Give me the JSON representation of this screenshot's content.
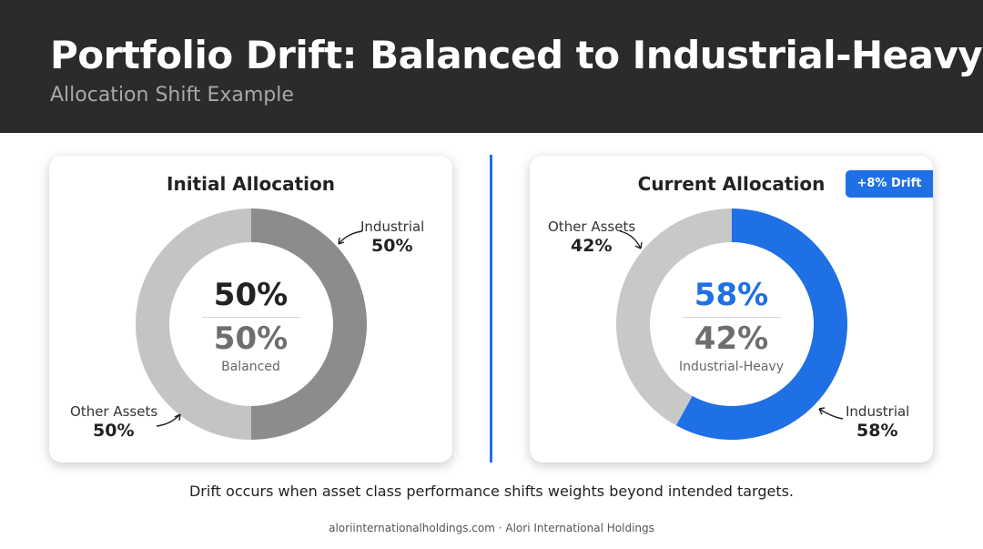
{
  "header": {
    "title": "Portfolio Drift: Balanced to Industrial-Heavy",
    "subtitle": "Allocation Shift Example"
  },
  "colors": {
    "header_bg": "#2b2b2b",
    "accent_blue": "#1f6fe5",
    "initial_industrial": "#8c8c8c",
    "initial_other": "#c4c4c4",
    "current_industrial": "#1f6fe5",
    "current_other": "#c8c8c8"
  },
  "chart_data": [
    {
      "type": "pie",
      "variant": "donut",
      "title": "Initial Allocation",
      "slices": [
        {
          "name": "Industrial",
          "value": 50,
          "label": "50%"
        },
        {
          "name": "Other Assets",
          "value": 50,
          "label": "50%"
        }
      ],
      "center": {
        "primary": "50%",
        "secondary": "50%",
        "caption": "Balanced"
      }
    },
    {
      "type": "pie",
      "variant": "donut",
      "title": "Current Allocation",
      "badge": "+8% Drift",
      "slices": [
        {
          "name": "Industrial",
          "value": 58,
          "label": "58%"
        },
        {
          "name": "Other Assets",
          "value": 42,
          "label": "42%"
        }
      ],
      "center": {
        "primary": "58%",
        "secondary": "42%",
        "caption": "Industrial-Heavy"
      }
    }
  ],
  "note": "Drift occurs when asset class performance shifts weights beyond intended targets.",
  "footer": "aloriinternationalholdings.com · Alori International Holdings"
}
